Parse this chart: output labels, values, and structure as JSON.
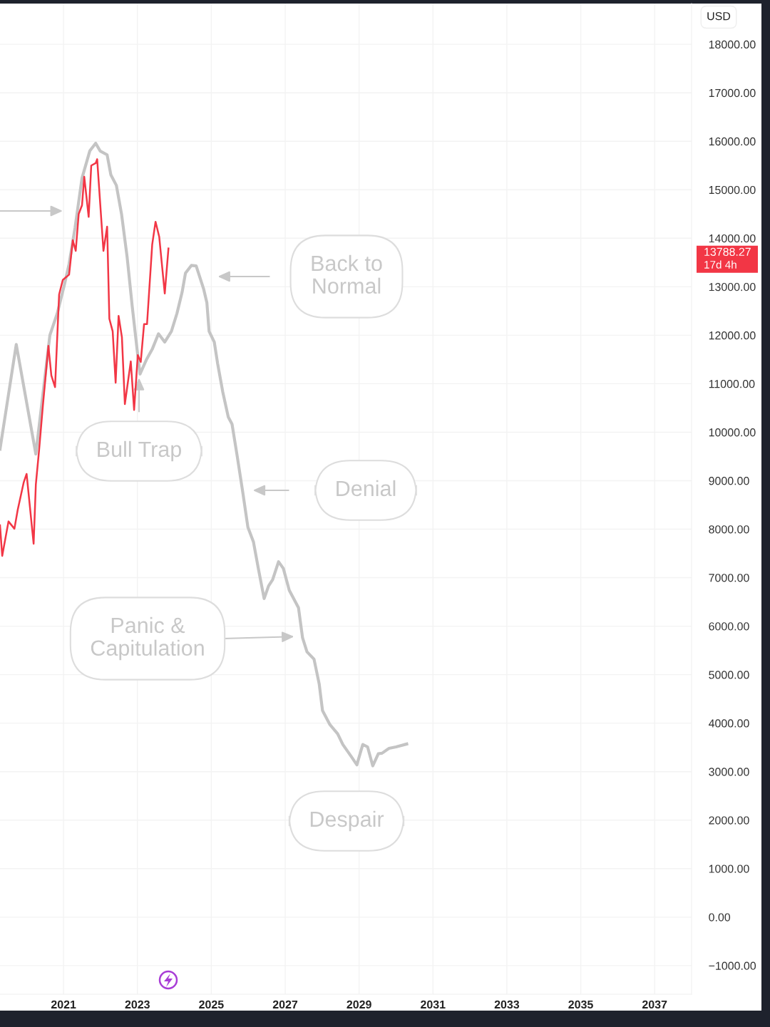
{
  "chart_data": {
    "type": "line",
    "series": [
      {
        "color": "#c4c4c4",
        "x": [
          2019.28,
          2019.72,
          2020.25,
          2020.63,
          2020.83,
          2021.02,
          2021.15,
          2021.31,
          2021.5,
          2021.71,
          2021.87,
          2021.99,
          2022.18,
          2022.28,
          2022.43,
          2022.57,
          2022.72,
          2022.86,
          2022.99,
          2023.07,
          2023.24,
          2023.4,
          2023.57,
          2023.74,
          2023.92,
          2024.07,
          2024.21,
          2024.3,
          2024.46,
          2024.59,
          2024.79,
          2024.88,
          2024.94,
          2025.08,
          2025.17,
          2025.31,
          2025.46,
          2025.56,
          2025.7,
          2025.85,
          2025.99,
          2026.14,
          2026.28,
          2026.43,
          2026.55,
          2026.66,
          2026.82,
          2026.95,
          2027.11,
          2027.36,
          2027.47,
          2027.59,
          2027.78,
          2027.92,
          2028.01,
          2028.21,
          2028.42,
          2028.56,
          2028.79,
          2028.94,
          2029.1,
          2029.23,
          2029.37,
          2029.52,
          2029.62,
          2029.81,
          2030.0,
          2030.29
        ],
        "values": [
          9650,
          11810,
          9550,
          12000,
          12450,
          13030,
          13470,
          14210,
          15240,
          15800,
          15960,
          15800,
          15720,
          15310,
          15090,
          14500,
          13620,
          12590,
          11710,
          11200,
          11490,
          11710,
          12030,
          11860,
          12080,
          12450,
          12890,
          13280,
          13440,
          13430,
          12960,
          12670,
          12080,
          11860,
          11420,
          10830,
          10310,
          10170,
          9510,
          8770,
          8040,
          7740,
          7160,
          6570,
          6830,
          6960,
          7330,
          7190,
          6740,
          6380,
          5760,
          5470,
          5320,
          4810,
          4260,
          3970,
          3780,
          3560,
          3310,
          3140,
          3560,
          3510,
          3120,
          3370,
          3380,
          3480,
          3510,
          3570
        ]
      },
      {
        "color": "#f23645",
        "x": [
          2019.28,
          2019.34,
          2019.51,
          2019.67,
          2019.76,
          2019.92,
          2020.0,
          2020.19,
          2020.25,
          2020.34,
          2020.44,
          2020.59,
          2020.67,
          2020.77,
          2020.88,
          2020.98,
          2021.15,
          2021.25,
          2021.33,
          2021.41,
          2021.5,
          2021.56,
          2021.68,
          2021.75,
          2021.87,
          2021.91,
          2022.08,
          2022.18,
          2022.24,
          2022.33,
          2022.41,
          2022.49,
          2022.58,
          2022.66,
          2022.82,
          2022.91,
          2023.01,
          2023.09,
          2023.18,
          2023.26,
          2023.4,
          2023.49,
          2023.59,
          2023.74,
          2023.84
        ],
        "values": [
          8080,
          7450,
          8160,
          8010,
          8400,
          8960,
          9140,
          7700,
          8920,
          9650,
          10540,
          11780,
          11170,
          10930,
          12840,
          13140,
          13250,
          13960,
          13740,
          14500,
          14680,
          15270,
          14440,
          15500,
          15550,
          15630,
          13740,
          14240,
          12340,
          12080,
          11020,
          12400,
          11960,
          10580,
          11460,
          10460,
          11590,
          11450,
          12230,
          12230,
          13870,
          14340,
          14030,
          12860,
          13788.27
        ]
      }
    ],
    "xlim": [
      2019.28,
      2038.0
    ],
    "xticks": [
      2021,
      2023,
      2025,
      2027,
      2029,
      2031,
      2033,
      2035,
      2037
    ],
    "ylim": [
      -1590,
      18840
    ],
    "yticks": [
      {
        "value": -1000,
        "label": "−1000.00"
      },
      {
        "value": 0,
        "label": "0.00"
      },
      {
        "value": 1000,
        "label": "1000.00"
      },
      {
        "value": 2000,
        "label": "2000.00"
      },
      {
        "value": 3000,
        "label": "3000.00"
      },
      {
        "value": 4000,
        "label": "4000.00"
      },
      {
        "value": 5000,
        "label": "5000.00"
      },
      {
        "value": 6000,
        "label": "6000.00"
      },
      {
        "value": 7000,
        "label": "7000.00"
      },
      {
        "value": 8000,
        "label": "8000.00"
      },
      {
        "value": 9000,
        "label": "9000.00"
      },
      {
        "value": 10000,
        "label": "10000.00"
      },
      {
        "value": 11000,
        "label": "11000.00"
      },
      {
        "value": 12000,
        "label": "12000.00"
      },
      {
        "value": 13000,
        "label": "13000.00"
      },
      {
        "value": 14000,
        "label": "14000.00"
      },
      {
        "value": 15000,
        "label": "15000.00"
      },
      {
        "value": 16000,
        "label": "16000.00"
      },
      {
        "value": 17000,
        "label": "17000.00"
      },
      {
        "value": 18000,
        "label": "18000.00"
      }
    ],
    "grid": true,
    "legend": false,
    "line_style": "solid",
    "annotations": [
      "Back to\nNormal",
      "Bull Trap",
      "Denial",
      "Panic &\nCapitulation",
      "Despair",
      "USD",
      "13788.27",
      "17d 4h"
    ]
  }
}
